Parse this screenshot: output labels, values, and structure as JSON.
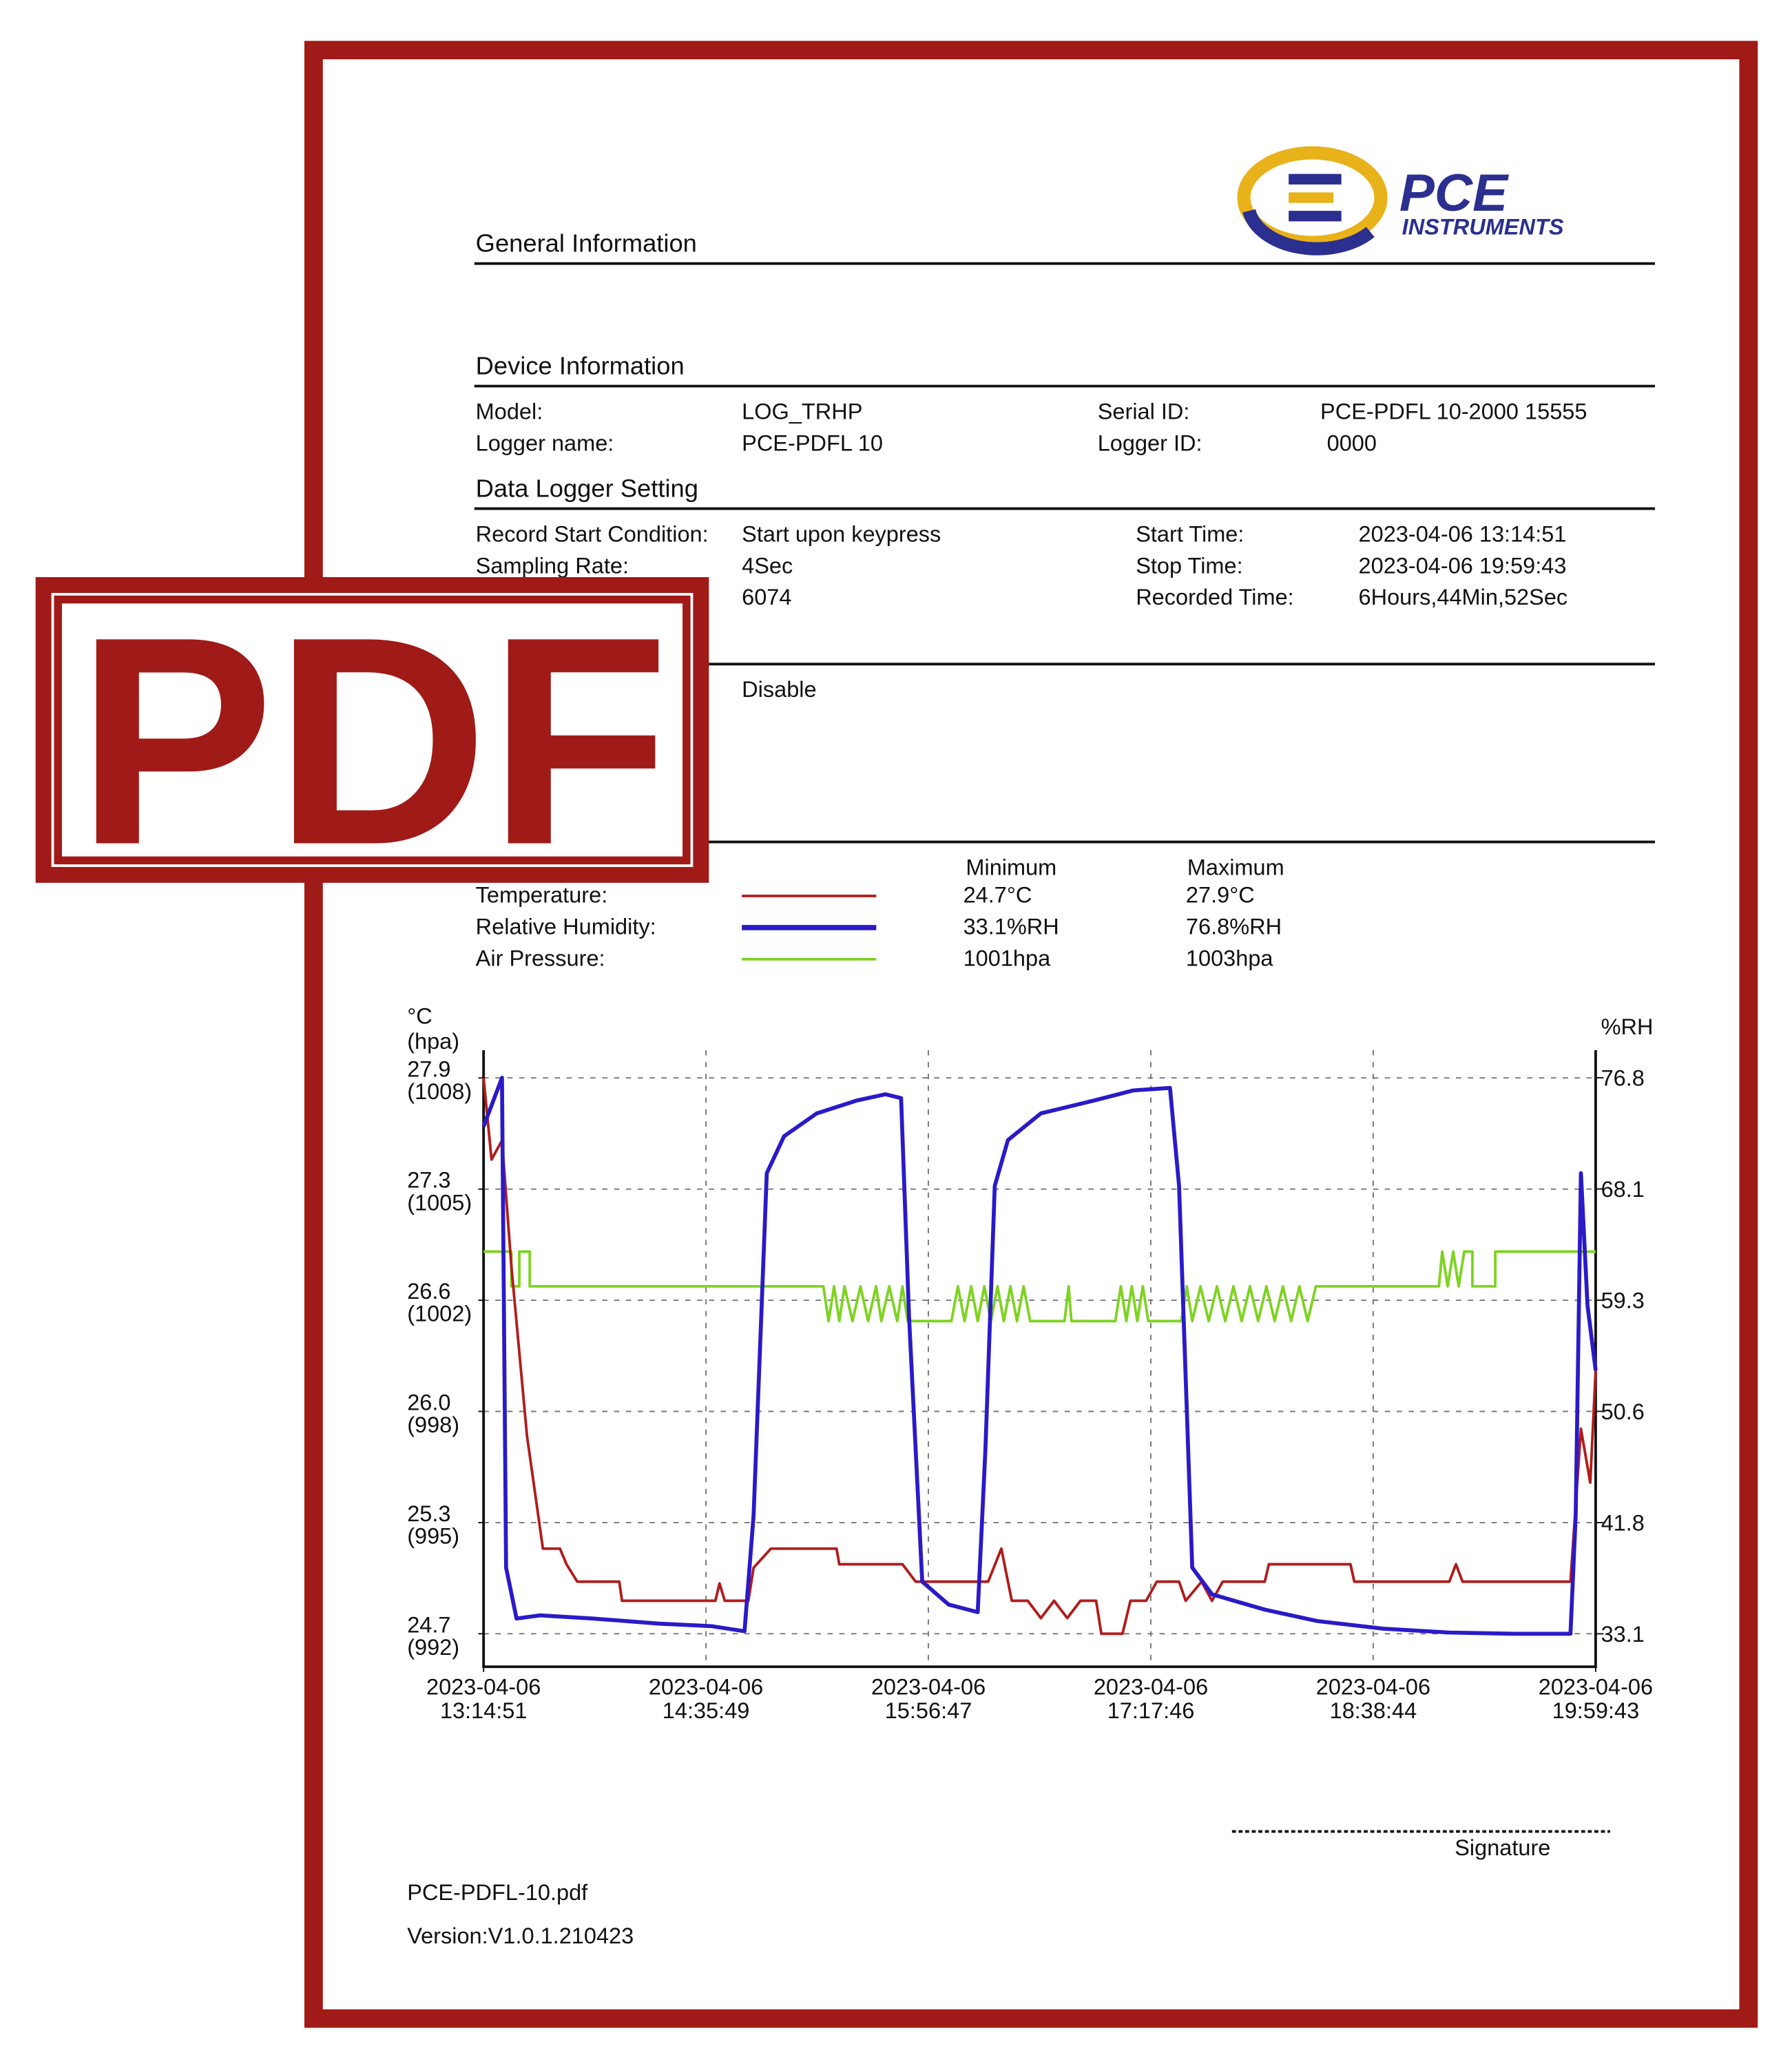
{
  "badge": "PDF",
  "logo": {
    "brand": "PCE",
    "sub": "INSTRUMENTS"
  },
  "general": {
    "title": "General Information"
  },
  "device": {
    "title": "Device Information",
    "rows": [
      [
        "Model:",
        "LOG_TRHP",
        "Serial ID:",
        "PCE-PDFL 10-2000 15555"
      ],
      [
        "Logger name:",
        "PCE-PDFL 10",
        "Logger ID:",
        "0000"
      ]
    ]
  },
  "setting": {
    "title": "Data Logger Setting",
    "rows": [
      [
        "Record Start Condition:",
        "Start upon keypress",
        "Start Time:",
        "2023-04-06 13:14:51"
      ],
      [
        "Sampling Rate:",
        "4Sec",
        "Stop Time:",
        "2023-04-06 19:59:43"
      ],
      [
        "6074",
        "Recorded Time:",
        "6Hours,44Min,52Sec"
      ]
    ]
  },
  "alarm": {
    "value": "Disable"
  },
  "summary": {
    "headers": [
      "Minimum",
      "Maximum"
    ],
    "rows": [
      [
        "Temperature:",
        "24.7°C",
        "27.9°C"
      ],
      [
        "Relative Humidity:",
        "33.1%RH",
        "76.8%RH"
      ],
      [
        "Air Pressure:",
        "1001hpa",
        "1003hpa"
      ]
    ]
  },
  "chart": {
    "type": "line",
    "ylabel": "°C",
    "plabel": "(hpa)",
    "y2label": "%RH",
    "xlim": [
      0,
      404.87
    ],
    "xticks": [
      {
        "value": 0,
        "label": "2023-04-06 13:14:51"
      },
      {
        "value": 80.97,
        "label": "2023-04-06 14:35:49"
      },
      {
        "value": 161.93,
        "label": "2023-04-06 15:56:47"
      },
      {
        "value": 242.92,
        "label": "2023-04-06 17:17:46"
      },
      {
        "value": 323.88,
        "label": "2023-04-06 18:38:44"
      },
      {
        "value": 404.87,
        "label": "2023-04-06 19:59:43"
      }
    ],
    "ylim": [
      24.51,
      28.06
    ],
    "yticks": [
      27.9,
      {
        "value": 27.26,
        "label": "27.3"
      },
      {
        "value": 26.62,
        "label": "26.6"
      },
      {
        "value": 25.98,
        "label": "26.0"
      },
      {
        "value": 25.34,
        "label": "25.3"
      },
      24.7
    ],
    "plim": [
      991.05,
      1008.8
    ],
    "pticks": [
      {
        "value": 1008,
        "label": "(1008)"
      },
      {
        "value": 1004.8,
        "label": "(1005)"
      },
      {
        "value": 1001.6,
        "label": "(1002)"
      },
      {
        "value": 998.4,
        "label": "(998)"
      },
      {
        "value": 995.2,
        "label": "(995)"
      },
      {
        "value": 992,
        "label": "(992)"
      }
    ],
    "y2lim": [
      30.51,
      78.97
    ],
    "y2ticks": [
      76.8,
      {
        "value": 68.06,
        "label": "68.1"
      },
      {
        "value": 59.32,
        "label": "59.3"
      },
      {
        "value": 50.58,
        "label": "50.6"
      },
      {
        "value": 41.84,
        "label": "41.8"
      },
      33.1
    ],
    "grid": true,
    "series": [
      {
        "color": "#b01c1c",
        "axis": "y",
        "x": [
          0,
          2.9,
          6.7,
          10.1,
          15.8,
          21.6,
          27.8,
          30.2,
          34.1,
          49.4,
          50.4,
          84.4,
          85.9,
          87.8,
          96.4,
          98.3,
          104.6,
          128.5,
          129.5,
          152.5,
          157.3,
          183.7,
          188.5,
          192.3,
          198.1,
          202.9,
          207.7,
          212.5,
          217.3,
          223.0,
          224.9,
          232.6,
          235.5,
          241.2,
          245.1,
          253.2,
          255.6,
          261.4,
          265.2,
          269.1,
          284.4,
          285.9,
          315.6,
          317.0,
          351.6,
          354.0,
          356.4,
          395.7,
          399.5,
          402.9,
          404.87
        ],
        "values": [
          27.9,
          27.43,
          27.54,
          26.82,
          25.84,
          25.19,
          25.19,
          25.1,
          25.0,
          25.0,
          24.89,
          24.89,
          24.99,
          24.89,
          24.89,
          25.08,
          25.19,
          25.19,
          25.1,
          25.1,
          25.0,
          25.0,
          25.19,
          24.89,
          24.89,
          24.79,
          24.89,
          24.79,
          24.89,
          24.89,
          24.7,
          24.7,
          24.89,
          24.89,
          25.0,
          25.0,
          24.89,
          25.0,
          24.89,
          25.0,
          25.0,
          25.1,
          25.1,
          25.0,
          25.0,
          25.1,
          25.0,
          25.0,
          25.88,
          25.57,
          26.22
        ]
      },
      {
        "color": "#2a1ac8",
        "axis": "y2",
        "x": [
          0,
          6.7,
          8.2,
          12.0,
          20.6,
          39.8,
          63.8,
          83.0,
          95.0,
          98.3,
          103.1,
          109.4,
          121.3,
          135.7,
          146.3,
          152.0,
          154.9,
          159.7,
          169.3,
          179.9,
          182.7,
          186.1,
          190.9,
          202.9,
          222.1,
          236.5,
          249.9,
          253.2,
          258.0,
          265.2,
          284.4,
          303.6,
          327.6,
          351.6,
          375.5,
          395.7,
          397.6,
          399.5,
          401.9,
          404.87
        ],
        "values": [
          72.97,
          76.8,
          38.3,
          34.3,
          34.55,
          34.3,
          33.9,
          33.7,
          33.3,
          42.4,
          69.3,
          72.2,
          74.0,
          75.0,
          75.5,
          75.2,
          58.0,
          37.2,
          35.4,
          34.8,
          47.6,
          68.3,
          71.9,
          74.0,
          75.0,
          75.8,
          76.0,
          68.3,
          38.3,
          36.2,
          35.0,
          34.1,
          33.5,
          33.2,
          33.1,
          33.1,
          42.4,
          69.3,
          58.9,
          53.8
        ]
      },
      {
        "color": "#7ed321",
        "axis": "p",
        "x": [
          0,
          10.1,
          10.1,
          13,
          13,
          16.8,
          16.8,
          123.7,
          125.6,
          127.6,
          129.5,
          131.4,
          134.3,
          137.2,
          140.0,
          142.9,
          144.8,
          147.7,
          150.6,
          152.5,
          154.4,
          170.3,
          172.7,
          175.1,
          177.5,
          179.9,
          182.3,
          184.7,
          187.1,
          189.4,
          191.8,
          194.2,
          196.6,
          199.0,
          211.5,
          213,
          214,
          230,
          232,
          234,
          236,
          238,
          240,
          242,
          254,
          256,
          258,
          261,
          264,
          267,
          270,
          273,
          276,
          279,
          282,
          285,
          288,
          291,
          294,
          297,
          300,
          303,
          347.8,
          349,
          351,
          353,
          355,
          357,
          360,
          360,
          368.3,
          368.3,
          404.87
        ],
        "values": [
          1003,
          1003,
          1002,
          1002,
          1003,
          1003,
          1002,
          1002,
          1001,
          1002,
          1001,
          1002,
          1001,
          1002,
          1001,
          1002,
          1001,
          1002,
          1001,
          1002,
          1001,
          1001,
          1002,
          1001,
          1002,
          1001,
          1002,
          1001,
          1002,
          1001,
          1002,
          1001,
          1002,
          1001,
          1001,
          1002,
          1001,
          1001,
          1002,
          1001,
          1002,
          1001,
          1002,
          1001,
          1001,
          1002,
          1001,
          1002,
          1001,
          1002,
          1001,
          1002,
          1001,
          1002,
          1001,
          1002,
          1001,
          1002,
          1001,
          1002,
          1001,
          1002,
          1002,
          1003,
          1002,
          1003,
          1002,
          1003,
          1003,
          1002,
          1002,
          1003,
          1003
        ]
      }
    ]
  },
  "signature": "Signature",
  "footer": {
    "file": "PCE-PDFL-10.pdf",
    "version": "Version:V1.0.1.210423"
  }
}
